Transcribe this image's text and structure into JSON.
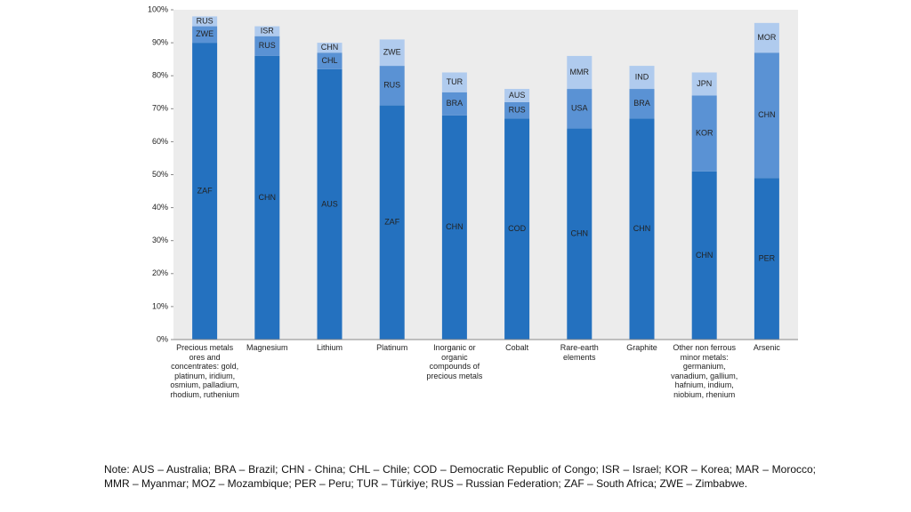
{
  "chart_data": {
    "type": "stacked_bar",
    "categories": [
      "Precious metals ores and concentrates: gold, platinum, iridium, osmium, palladium, rhodium, ruthenium",
      "Magnesium",
      "Lithium",
      "Platinum",
      "Inorganic or organic compounds of precious metals",
      "Cobalt",
      "Rare-earth elements",
      "Graphite",
      "Other non ferrous minor metals: germanium, vanadium, gallium, hafnium, indium, niobium, rhenium",
      "Arsenic"
    ],
    "series": [
      {
        "color": "#2471bf",
        "values": [
          90,
          86,
          82,
          71,
          68,
          67,
          64,
          67,
          51,
          49
        ],
        "labels": [
          "ZAF",
          "CHN",
          "AUS",
          "ZAF",
          "CHN",
          "COD",
          "CHN",
          "CHN",
          "CHN",
          "PER"
        ]
      },
      {
        "color": "#5a92d4",
        "values": [
          5,
          6,
          5,
          12,
          7,
          5,
          12,
          9,
          23,
          38
        ],
        "labels": [
          "ZWE",
          "RUS",
          "CHL",
          "RUS",
          "BRA",
          "RUS",
          "USA",
          "BRA",
          "KOR",
          "CHN"
        ]
      },
      {
        "color": "#b0cbee",
        "values": [
          3,
          3,
          3,
          8,
          6,
          4,
          10,
          7,
          7,
          9
        ],
        "labels": [
          "RUS",
          "ISR",
          "CHN",
          "ZWE",
          "TUR",
          "AUS",
          "MMR",
          "IND",
          "JPN",
          "MOR"
        ]
      }
    ],
    "ylim": [
      0,
      100
    ],
    "yticks": [
      {
        "value": 0,
        "label": "0%"
      },
      {
        "value": 10,
        "label": "10%"
      },
      {
        "value": 20,
        "label": "20%"
      },
      {
        "value": 30,
        "label": "30%"
      },
      {
        "value": 40,
        "label": "40%"
      },
      {
        "value": 50,
        "label": "50%"
      },
      {
        "value": 60,
        "label": "60%"
      },
      {
        "value": 70,
        "label": "70%"
      },
      {
        "value": 80,
        "label": "80%"
      },
      {
        "value": 90,
        "label": "90%"
      },
      {
        "value": 100,
        "label": "100%"
      }
    ],
    "note": "Note: AUS – Australia; BRA – Brazil; CHN - China; CHL – Chile; COD – Democratic Republic of Congo; ISR – Israel; KOR – Korea; MAR – Morocco; MMR – Myanmar; MOZ – Mozambique; PER – Peru; TUR – Türkiye; RUS – Russian Federation; ZAF – South Africa; ZWE – Zimbabwe."
  }
}
